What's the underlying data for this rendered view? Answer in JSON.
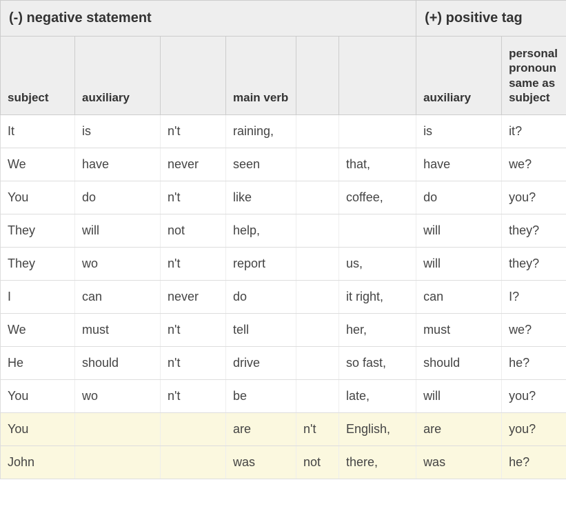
{
  "header": {
    "negative_label": "(-) negative statement",
    "positive_label": "(+) positive tag"
  },
  "columns": {
    "subject": "subject",
    "auxiliary1": "auxiliary",
    "blank1": "",
    "main_verb": "main verb",
    "blank2": "",
    "blank3": "",
    "auxiliary2": "auxiliary",
    "pronoun": "personal pronoun same as subject"
  },
  "rows": [
    {
      "c": [
        "It",
        "is",
        "n't",
        "raining,",
        "",
        "",
        "is",
        "it?"
      ],
      "hl": false
    },
    {
      "c": [
        "We",
        "have",
        "never",
        "seen",
        "",
        "that,",
        "have",
        "we?"
      ],
      "hl": false
    },
    {
      "c": [
        "You",
        "do",
        "n't",
        "like",
        "",
        "coffee,",
        "do",
        "you?"
      ],
      "hl": false
    },
    {
      "c": [
        "They",
        "will",
        "not",
        "help,",
        "",
        "",
        "will",
        "they?"
      ],
      "hl": false
    },
    {
      "c": [
        "They",
        "wo",
        "n't",
        "report",
        "",
        "us,",
        "will",
        "they?"
      ],
      "hl": false
    },
    {
      "c": [
        "I",
        "can",
        "never",
        "do",
        "",
        "it right,",
        "can",
        "I?"
      ],
      "hl": false
    },
    {
      "c": [
        "We",
        "must",
        "n't",
        "tell",
        "",
        "her,",
        "must",
        "we?"
      ],
      "hl": false
    },
    {
      "c": [
        "He",
        "should",
        "n't",
        "drive",
        "",
        "so fast,",
        "should",
        "he?"
      ],
      "hl": false
    },
    {
      "c": [
        "You",
        "wo",
        "n't",
        "be",
        "",
        "late,",
        "will",
        "you?"
      ],
      "hl": false
    },
    {
      "c": [
        "You",
        "",
        "",
        "are",
        "n't",
        "English,",
        "are",
        "you?"
      ],
      "hl": true
    },
    {
      "c": [
        "John",
        "",
        "",
        "was",
        "not",
        "there,",
        "was",
        "he?"
      ],
      "hl": true
    }
  ],
  "styling": {
    "header_bg": "#eeeeee",
    "row_border": "#dddddd",
    "highlight_bg": "#fbf8df",
    "font_family": "Verdana",
    "body_fontsize": 18,
    "header_fontsize": 20,
    "colheader_fontsize": 17
  }
}
